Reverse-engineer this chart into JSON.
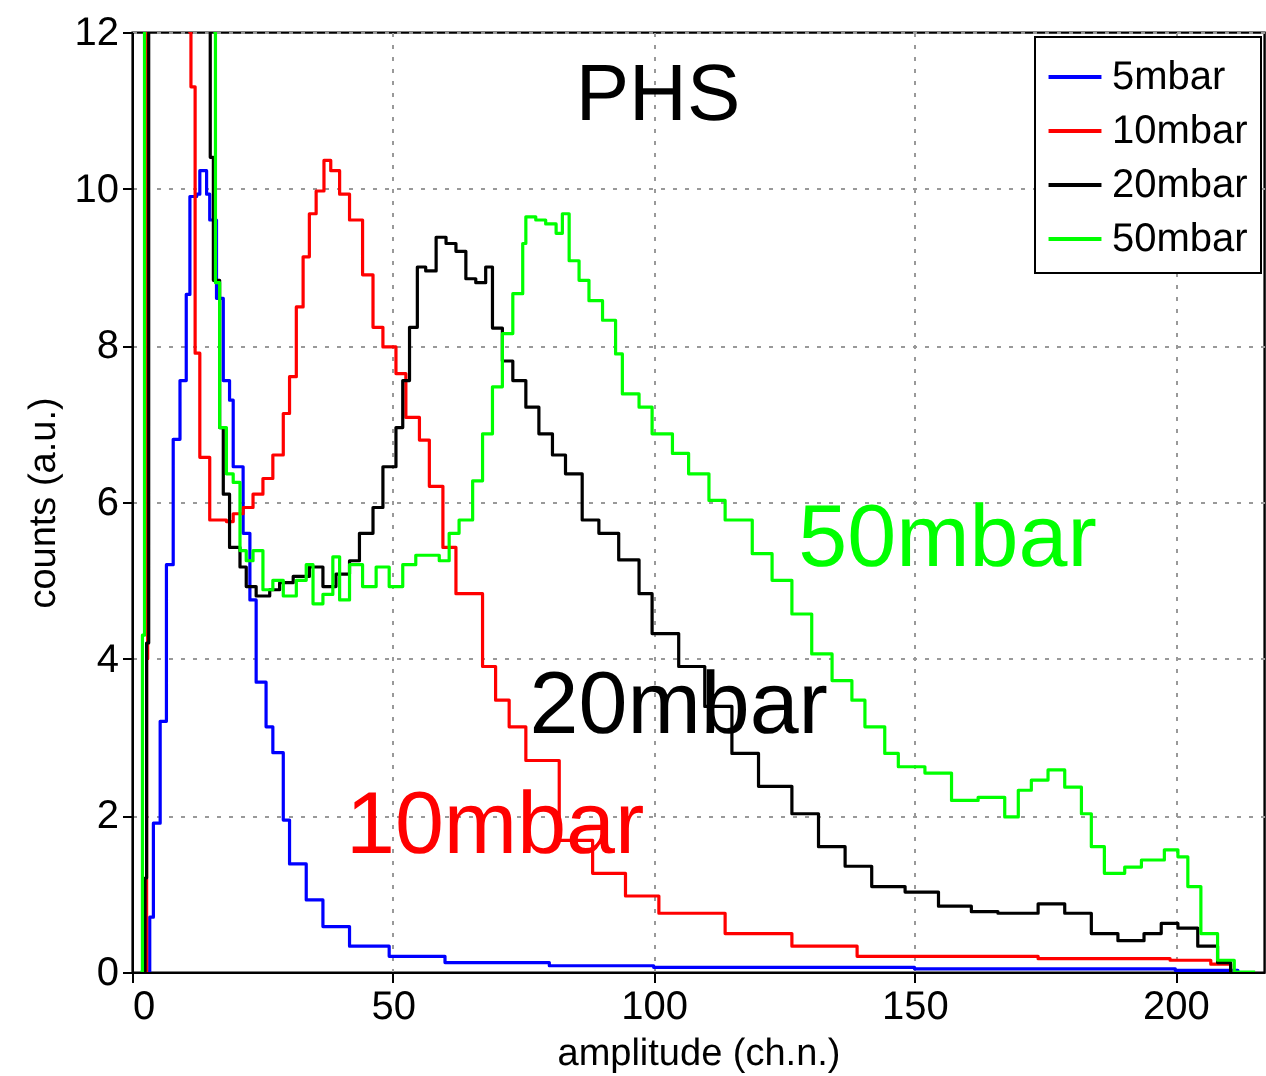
{
  "chart_data": {
    "type": "step",
    "title": "PHS",
    "xlabel": "amplitude (ch.n.)",
    "ylabel": "counts (a.u.)",
    "xlim": [
      0,
      217
    ],
    "ylim": [
      0,
      12
    ],
    "xticks": [
      0,
      50,
      100,
      150,
      200
    ],
    "yticks": [
      0,
      2,
      4,
      6,
      8,
      10,
      12
    ],
    "grid": true,
    "legend": "top right",
    "line_style": "solid",
    "marker": "none",
    "series": [
      {
        "name": "5mbar",
        "color": "#0000ff",
        "x": [
          2.8,
          3.4,
          4.1,
          5.4,
          6.6,
          7.9,
          9.2,
          10.4,
          11.1,
          12.4,
          13.0,
          14.3,
          14.9,
          16.2,
          17.5,
          18.7,
          19.4,
          21.3,
          22.6,
          23.8,
          25.7,
          27.0,
          29.0,
          30.2,
          33.4,
          36.6,
          41.7,
          49.3,
          60,
          80,
          100,
          150,
          200,
          212
        ],
        "values": [
          0,
          0.7,
          1.9,
          3.2,
          5.2,
          6.8,
          7.55,
          8.65,
          9.9,
          9.93,
          10.23,
          9.93,
          9.6,
          8.6,
          7.55,
          7.3,
          6.45,
          5.6,
          4.75,
          3.7,
          3.13,
          2.8,
          1.94,
          1.38,
          0.92,
          0.58,
          0.33,
          0.2,
          0.12,
          0.08,
          0.06,
          0.04,
          0.02,
          0
        ]
      },
      {
        "name": "10mbar",
        "color": "#ff0000",
        "x": [
          2.5,
          2.8,
          3.0,
          6,
          10.8,
          11.3,
          12.1,
          13.0,
          14.9,
          18.1,
          19.4,
          21.3,
          23.2,
          25.1,
          27.0,
          29.0,
          30.2,
          31.5,
          32.8,
          34.0,
          35.3,
          36.8,
          38.1,
          39.8,
          41.7,
          44.2,
          46.2,
          48.1,
          50.6,
          52.5,
          55.1,
          57.0,
          59.6,
          62.1,
          67.2,
          69.7,
          72.3,
          75.5,
          81.9,
          88.3,
          94.6,
          101,
          113.7,
          126.5,
          139,
          173.7,
          199,
          206.8,
          210.6
        ],
        "values": [
          0,
          4,
          12,
          null,
          12,
          11.3,
          7.9,
          6.57,
          5.77,
          5.75,
          5.85,
          5.93,
          6.1,
          6.3,
          6.6,
          7.13,
          7.6,
          8.49,
          9.13,
          9.68,
          9.97,
          10.36,
          10.23,
          9.93,
          9.6,
          8.9,
          8.23,
          7.98,
          7.64,
          7.08,
          6.79,
          6.2,
          5.42,
          4.83,
          3.9,
          3.47,
          3.13,
          2.7,
          1.68,
          1.26,
          0.97,
          0.75,
          0.49,
          0.33,
          0.2,
          0.17,
          0.15,
          0.1,
          0
        ]
      },
      {
        "name": "20mbar",
        "color": "#000000",
        "x": [
          2.2,
          2.5,
          2.8,
          3.2,
          8,
          14.7,
          15.0,
          15.6,
          16.8,
          17.5,
          18.7,
          20.7,
          21.9,
          23.8,
          26.4,
          28.3,
          30.9,
          34.0,
          36.6,
          39.1,
          41.7,
          43.6,
          46.2,
          48.1,
          50.6,
          51.9,
          53.2,
          54.7,
          56.3,
          58.3,
          60.2,
          62.1,
          64.0,
          65.9,
          67.8,
          69.1,
          71.0,
          73.0,
          75.5,
          78.0,
          80.6,
          83.1,
          86.3,
          89.5,
          93.3,
          97.2,
          99.7,
          104.8,
          109.8,
          115.0,
          120.1,
          126.5,
          131.6,
          136.7,
          141.8,
          148.2,
          154.6,
          160.9,
          166.0,
          173.7,
          178.8,
          183.9,
          189.0,
          194.0,
          197.3,
          200.5,
          204.3,
          208.1,
          210.6
        ],
        "values": [
          0,
          1.2,
          4.2,
          12,
          null,
          12,
          10.4,
          8.83,
          6.95,
          6.1,
          5.42,
          5.17,
          4.92,
          4.8,
          4.88,
          4.97,
          5.05,
          5.17,
          4.92,
          5.08,
          5.25,
          5.6,
          5.93,
          6.45,
          6.95,
          7.55,
          8.23,
          9.0,
          8.95,
          9.38,
          9.3,
          9.2,
          8.85,
          8.8,
          9.0,
          8.22,
          7.8,
          7.55,
          7.21,
          6.87,
          6.6,
          6.36,
          5.77,
          5.6,
          5.26,
          4.83,
          4.32,
          3.9,
          3.39,
          2.79,
          2.37,
          2.02,
          1.6,
          1.35,
          1.09,
          1.02,
          0.84,
          0.77,
          0.75,
          0.87,
          0.75,
          0.49,
          0.4,
          0.49,
          0.62,
          0.56,
          0.33,
          0.12,
          0
        ]
      },
      {
        "name": "50mbar",
        "color": "#00ff00",
        "x": [
          1.6,
          2.0,
          2.4,
          8,
          15.6,
          16.0,
          16.8,
          18.1,
          19.4,
          20.7,
          21.9,
          23.2,
          25.1,
          27.0,
          29.0,
          31.5,
          33.4,
          34.7,
          36.6,
          38.5,
          39.8,
          41.7,
          44.2,
          46.8,
          49.3,
          51.9,
          54.4,
          57.0,
          58.9,
          60.8,
          62.7,
          65.3,
          67.2,
          69.1,
          71.0,
          73.0,
          74.9,
          75.5,
          77.4,
          79.3,
          81.3,
          82.5,
          83.8,
          85.7,
          87.6,
          90.2,
          92.7,
          94.0,
          97.2,
          99.7,
          103.6,
          106.7,
          110.6,
          113.7,
          118.9,
          122.7,
          126.5,
          130.3,
          134.2,
          138.0,
          140.5,
          144.3,
          146.9,
          152.0,
          157.1,
          162.2,
          167.3,
          169.9,
          172.4,
          175.6,
          178.8,
          182.0,
          183.9,
          186.4,
          190.3,
          193.5,
          197.9,
          200.5,
          202.4,
          204.9,
          208.1,
          211.3,
          215.3
        ],
        "values": [
          0,
          4.3,
          12,
          null,
          12,
          8.8,
          6.95,
          6.36,
          6.25,
          5.38,
          5.25,
          5.38,
          4.88,
          5.0,
          4.8,
          5.0,
          5.2,
          4.7,
          4.82,
          5.3,
          4.75,
          5.2,
          4.92,
          5.17,
          4.92,
          5.2,
          5.32,
          5.32,
          5.25,
          5.6,
          5.77,
          6.27,
          6.87,
          7.47,
          8.15,
          8.66,
          9.3,
          9.64,
          9.6,
          9.55,
          9.43,
          9.68,
          9.08,
          8.83,
          8.57,
          8.32,
          7.89,
          7.38,
          7.21,
          6.87,
          6.62,
          6.36,
          6.02,
          5.77,
          5.34,
          5.0,
          4.57,
          4.06,
          3.72,
          3.47,
          3.13,
          2.79,
          2.62,
          2.54,
          2.19,
          2.23,
          1.98,
          2.32,
          2.45,
          2.58,
          2.36,
          2.02,
          1.6,
          1.26,
          1.34,
          1.43,
          1.56,
          1.47,
          1.09,
          0.49,
          0.15,
          0,
          0
        ]
      }
    ]
  }
}
